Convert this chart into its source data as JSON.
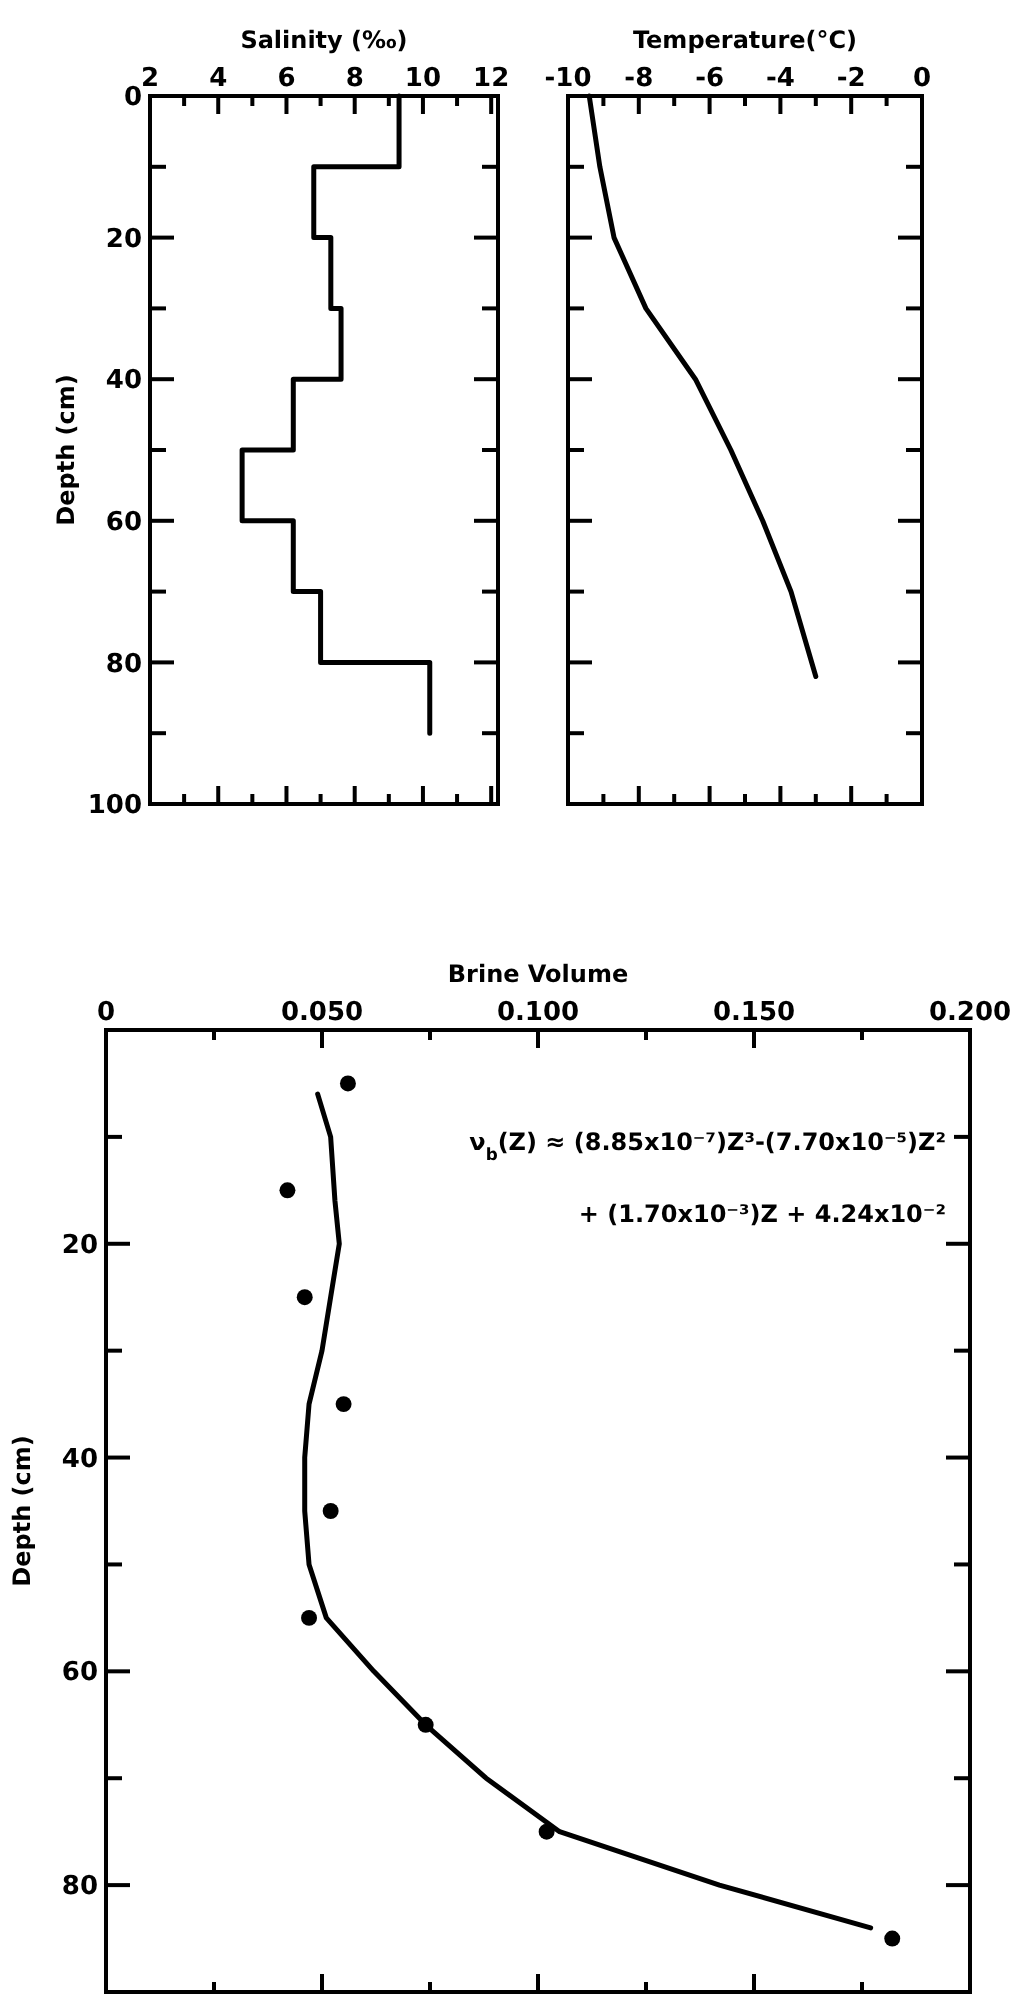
{
  "chart_data": [
    {
      "type": "line",
      "xlabel": "Salinity (‰)",
      "ylabel": "Depth (cm)",
      "xlim": [
        2,
        12.2
      ],
      "ylim": [
        100,
        0
      ],
      "xticks": [
        2,
        {
          "value": 3,
          "label": null
        },
        4,
        {
          "value": 5,
          "label": null
        },
        6,
        {
          "value": 7,
          "label": null
        },
        8,
        {
          "value": 9,
          "label": null
        },
        10,
        {
          "value": 11,
          "label": null
        },
        12
      ],
      "yticks": [
        0,
        {
          "value": 10,
          "label": null
        },
        20,
        {
          "value": 30,
          "label": null
        },
        40,
        {
          "value": 50,
          "label": null
        },
        60,
        {
          "value": 70,
          "label": null
        },
        80,
        {
          "value": 90,
          "label": null
        },
        100
      ],
      "line_style": "solid",
      "grid": false,
      "series": [
        {
          "color": "#000000",
          "x": [
            9.3,
            9.3,
            6.8,
            6.8,
            7.3,
            7.3,
            7.6,
            7.6,
            6.2,
            6.2,
            4.7,
            4.7,
            6.2,
            6.2,
            7,
            7,
            10.2,
            10.2
          ],
          "values": [
            0,
            10,
            10,
            20,
            20,
            30,
            30,
            40,
            40,
            50,
            50,
            60,
            60,
            70,
            70,
            80,
            80,
            90
          ]
        }
      ]
    },
    {
      "type": "line",
      "xlabel": "Temperature(°C)",
      "xlim": [
        -10,
        0
      ],
      "ylim": [
        100,
        0
      ],
      "tick_labels": "x",
      "xticks": [
        -10,
        {
          "value": -9,
          "label": null
        },
        -8,
        {
          "value": -7,
          "label": null
        },
        -6,
        {
          "value": -5,
          "label": null
        },
        -4,
        {
          "value": -3,
          "label": null
        },
        -2,
        {
          "value": -1,
          "label": null
        },
        0
      ],
      "yticks": [
        0,
        {
          "value": 10,
          "label": null
        },
        20,
        {
          "value": 30,
          "label": null
        },
        40,
        {
          "value": 50,
          "label": null
        },
        60,
        {
          "value": 70,
          "label": null
        },
        80,
        {
          "value": 90,
          "label": null
        },
        100
      ],
      "line_style": "solid",
      "grid": false,
      "series": [
        {
          "color": "#000000",
          "x": [
            -9.4,
            -9.1,
            -8.7,
            -7.8,
            -6.4,
            -5.4,
            -4.5,
            -3.7,
            -3.0
          ],
          "values": [
            0,
            10,
            20,
            30,
            40,
            50,
            60,
            70,
            82
          ]
        }
      ]
    },
    {
      "type": "scatter",
      "xlabel": "Brine Volume",
      "ylabel": "Depth (cm)",
      "xlim": [
        0,
        0.2
      ],
      "ylim": [
        90,
        0
      ],
      "xticks": [
        0,
        {
          "value": 0.025,
          "label": null
        },
        {
          "value": 0.05,
          "label": "0.050"
        },
        {
          "value": 0.075,
          "label": null
        },
        {
          "value": 0.1,
          "label": "0.100"
        },
        {
          "value": 0.125,
          "label": null
        },
        {
          "value": 0.15,
          "label": "0.150"
        },
        {
          "value": 0.175,
          "label": null
        },
        {
          "value": 0.2,
          "label": "0.200"
        }
      ],
      "yticks": [
        {
          "value": 10,
          "label": null
        },
        20,
        {
          "value": 30,
          "label": null
        },
        40,
        {
          "value": 50,
          "label": null
        },
        60,
        {
          "value": 70,
          "label": null
        },
        80
      ],
      "grid": false,
      "marker": "circle",
      "annotations": [
        "ν$_{b}$(Z) ≈ (8.85x10⁻⁷)Z³-(7.70x10⁻⁵)Z²",
        "+ (1.70x10⁻³)Z + 4.24x10⁻²"
      ],
      "series": [
        {
          "color": "#000000",
          "x": [
            0.056,
            0.042,
            0.046,
            0.055,
            0.052,
            0.047,
            0.074,
            0.102,
            0.182
          ],
          "values": [
            5,
            15,
            25,
            35,
            45,
            55,
            65,
            75,
            85
          ]
        },
        {
          "type": "line",
          "color": "#000000",
          "line_style": "solid",
          "marker": "none",
          "x": [
            0.049,
            0.052,
            0.053,
            0.054,
            0.052,
            0.05,
            0.047,
            0.046,
            0.046,
            0.047,
            0.051,
            0.062,
            0.074,
            0.088,
            0.105,
            0.142,
            0.177
          ],
          "values": [
            6,
            10,
            16,
            20,
            25,
            30,
            35,
            40,
            45,
            50,
            55,
            60,
            65,
            70,
            75,
            80,
            84
          ]
        }
      ]
    }
  ]
}
